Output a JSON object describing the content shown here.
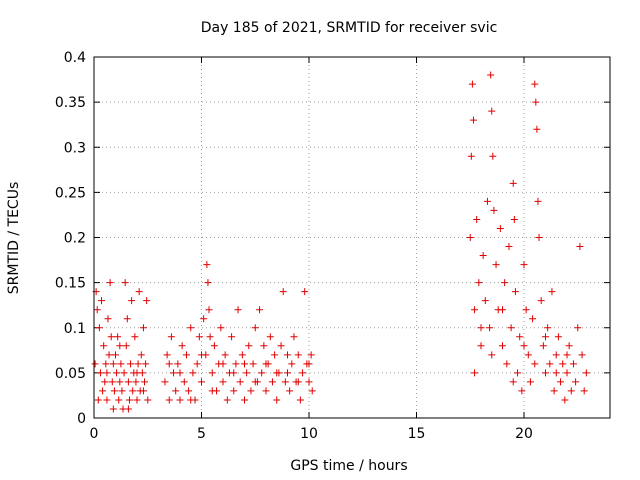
{
  "chart_data": {
    "type": "scatter",
    "title": "Day 185 of 2021, SRMTID for receiver svic",
    "xlabel": "GPS time / hours",
    "ylabel": "SRMTID / TECUs",
    "xlim": [
      0,
      24
    ],
    "ylim": [
      0,
      0.4
    ],
    "xticks": [
      0,
      5,
      10,
      15,
      20
    ],
    "yticks": [
      0,
      0.05,
      0.1,
      0.15,
      0.2,
      0.25,
      0.3,
      0.35,
      0.4
    ],
    "xtick_labels": [
      "0",
      "5",
      "10",
      "15",
      "20"
    ],
    "ytick_labels": [
      "0",
      "0.05",
      "0.1",
      "0.15",
      "0.2",
      "0.25",
      "0.3",
      "0.35",
      "0.4"
    ],
    "grid": true,
    "marker": "+",
    "color": "#e00000",
    "series": [
      {
        "points": [
          [
            0.05,
            0.06
          ],
          [
            0.1,
            0.14
          ],
          [
            0.15,
            0.12
          ],
          [
            0.2,
            0.02
          ],
          [
            0.25,
            0.1
          ],
          [
            0.3,
            0.05
          ],
          [
            0.35,
            0.13
          ],
          [
            0.4,
            0.03
          ],
          [
            0.45,
            0.08
          ],
          [
            0.5,
            0.04
          ],
          [
            0.55,
            0.06
          ],
          [
            0.6,
            0.02
          ],
          [
            0.65,
            0.11
          ],
          [
            0.7,
            0.07
          ],
          [
            0.75,
            0.15
          ],
          [
            0.8,
            0.09
          ],
          [
            0.85,
            0.04
          ],
          [
            0.9,
            0.06
          ],
          [
            0.95,
            0.03
          ],
          [
            1.0,
            0.07
          ],
          [
            1.05,
            0.05
          ],
          [
            1.1,
            0.09
          ],
          [
            1.15,
            0.02
          ],
          [
            1.2,
            0.04
          ],
          [
            1.25,
            0.06
          ],
          [
            1.3,
            0.03
          ],
          [
            1.35,
            0.01
          ],
          [
            1.4,
            0.05
          ],
          [
            1.45,
            0.15
          ],
          [
            1.5,
            0.08
          ],
          [
            1.55,
            0.11
          ],
          [
            1.6,
            0.04
          ],
          [
            1.65,
            0.02
          ],
          [
            1.7,
            0.06
          ],
          [
            1.75,
            0.13
          ],
          [
            1.8,
            0.03
          ],
          [
            1.85,
            0.05
          ],
          [
            1.9,
            0.09
          ],
          [
            1.95,
            0.04
          ],
          [
            2.0,
            0.02
          ],
          [
            2.05,
            0.06
          ],
          [
            2.1,
            0.14
          ],
          [
            2.15,
            0.03
          ],
          [
            2.2,
            0.07
          ],
          [
            2.25,
            0.05
          ],
          [
            2.3,
            0.1
          ],
          [
            2.35,
            0.04
          ],
          [
            2.4,
            0.06
          ],
          [
            2.45,
            0.13
          ],
          [
            2.5,
            0.02
          ],
          [
            0.6,
            0.05
          ],
          [
            0.9,
            0.01
          ],
          [
            1.2,
            0.08
          ],
          [
            1.6,
            0.01
          ],
          [
            2.0,
            0.05
          ],
          [
            2.3,
            0.03
          ],
          [
            3.3,
            0.04
          ],
          [
            3.4,
            0.07
          ],
          [
            3.5,
            0.02
          ],
          [
            3.6,
            0.09
          ],
          [
            3.7,
            0.05
          ],
          [
            3.8,
            0.03
          ],
          [
            3.9,
            0.06
          ],
          [
            4.0,
            0.02
          ],
          [
            4.1,
            0.08
          ],
          [
            4.2,
            0.04
          ],
          [
            4.3,
            0.07
          ],
          [
            4.4,
            0.03
          ],
          [
            4.5,
            0.1
          ],
          [
            4.6,
            0.05
          ],
          [
            4.7,
            0.02
          ],
          [
            4.8,
            0.06
          ],
          [
            4.9,
            0.09
          ],
          [
            5.0,
            0.04
          ],
          [
            5.1,
            0.11
          ],
          [
            5.2,
            0.07
          ],
          [
            5.25,
            0.17
          ],
          [
            5.3,
            0.15
          ],
          [
            5.35,
            0.12
          ],
          [
            5.4,
            0.09
          ],
          [
            5.5,
            0.05
          ],
          [
            5.6,
            0.08
          ],
          [
            5.7,
            0.03
          ],
          [
            5.8,
            0.06
          ],
          [
            5.9,
            0.1
          ],
          [
            6.0,
            0.04
          ],
          [
            6.1,
            0.07
          ],
          [
            6.2,
            0.02
          ],
          [
            6.3,
            0.05
          ],
          [
            6.4,
            0.09
          ],
          [
            6.5,
            0.03
          ],
          [
            6.6,
            0.06
          ],
          [
            6.7,
            0.12
          ],
          [
            6.8,
            0.04
          ],
          [
            6.9,
            0.07
          ],
          [
            7.0,
            0.02
          ],
          [
            7.1,
            0.05
          ],
          [
            7.2,
            0.08
          ],
          [
            7.3,
            0.03
          ],
          [
            7.4,
            0.06
          ],
          [
            7.5,
            0.1
          ],
          [
            7.6,
            0.04
          ],
          [
            7.7,
            0.12
          ],
          [
            7.8,
            0.05
          ],
          [
            7.9,
            0.08
          ],
          [
            8.0,
            0.03
          ],
          [
            8.1,
            0.06
          ],
          [
            8.2,
            0.09
          ],
          [
            8.3,
            0.04
          ],
          [
            8.4,
            0.07
          ],
          [
            8.5,
            0.02
          ],
          [
            8.6,
            0.05
          ],
          [
            8.7,
            0.08
          ],
          [
            8.8,
            0.14
          ],
          [
            8.9,
            0.04
          ],
          [
            9.0,
            0.07
          ],
          [
            9.1,
            0.03
          ],
          [
            9.2,
            0.06
          ],
          [
            9.3,
            0.09
          ],
          [
            9.4,
            0.04
          ],
          [
            9.5,
            0.07
          ],
          [
            9.6,
            0.02
          ],
          [
            9.7,
            0.05
          ],
          [
            9.8,
            0.14
          ],
          [
            9.9,
            0.06
          ],
          [
            10.0,
            0.04
          ],
          [
            10.1,
            0.07
          ],
          [
            10.15,
            0.03
          ],
          [
            3.5,
            0.06
          ],
          [
            4.0,
            0.05
          ],
          [
            4.5,
            0.02
          ],
          [
            5.0,
            0.07
          ],
          [
            5.5,
            0.03
          ],
          [
            6.0,
            0.06
          ],
          [
            6.5,
            0.05
          ],
          [
            7.0,
            0.06
          ],
          [
            7.5,
            0.04
          ],
          [
            8.0,
            0.06
          ],
          [
            8.5,
            0.05
          ],
          [
            9.0,
            0.05
          ],
          [
            9.5,
            0.04
          ],
          [
            10.0,
            0.06
          ],
          [
            17.5,
            0.2
          ],
          [
            17.55,
            0.29
          ],
          [
            17.6,
            0.37
          ],
          [
            17.65,
            0.33
          ],
          [
            17.7,
            0.12
          ],
          [
            17.8,
            0.22
          ],
          [
            17.9,
            0.15
          ],
          [
            18.0,
            0.08
          ],
          [
            18.1,
            0.18
          ],
          [
            18.2,
            0.13
          ],
          [
            18.3,
            0.24
          ],
          [
            18.4,
            0.1
          ],
          [
            18.45,
            0.38
          ],
          [
            18.5,
            0.34
          ],
          [
            18.55,
            0.29
          ],
          [
            18.6,
            0.23
          ],
          [
            18.7,
            0.17
          ],
          [
            18.8,
            0.12
          ],
          [
            18.9,
            0.21
          ],
          [
            19.0,
            0.08
          ],
          [
            19.1,
            0.15
          ],
          [
            19.2,
            0.06
          ],
          [
            19.3,
            0.19
          ],
          [
            19.4,
            0.1
          ],
          [
            19.5,
            0.26
          ],
          [
            19.55,
            0.22
          ],
          [
            19.6,
            0.14
          ],
          [
            19.7,
            0.05
          ],
          [
            19.8,
            0.09
          ],
          [
            19.9,
            0.03
          ],
          [
            20.0,
            0.17
          ],
          [
            20.1,
            0.12
          ],
          [
            20.2,
            0.07
          ],
          [
            20.3,
            0.04
          ],
          [
            20.4,
            0.11
          ],
          [
            20.5,
            0.37
          ],
          [
            20.55,
            0.35
          ],
          [
            20.6,
            0.32
          ],
          [
            20.65,
            0.24
          ],
          [
            20.7,
            0.2
          ],
          [
            20.8,
            0.13
          ],
          [
            20.9,
            0.08
          ],
          [
            21.0,
            0.05
          ],
          [
            21.1,
            0.1
          ],
          [
            21.2,
            0.06
          ],
          [
            21.3,
            0.14
          ],
          [
            21.4,
            0.03
          ],
          [
            21.5,
            0.07
          ],
          [
            21.6,
            0.09
          ],
          [
            21.7,
            0.04
          ],
          [
            21.8,
            0.06
          ],
          [
            21.9,
            0.02
          ],
          [
            22.0,
            0.05
          ],
          [
            22.1,
            0.08
          ],
          [
            22.2,
            0.03
          ],
          [
            22.3,
            0.06
          ],
          [
            22.4,
            0.04
          ],
          [
            22.5,
            0.1
          ],
          [
            22.6,
            0.19
          ],
          [
            22.7,
            0.07
          ],
          [
            22.8,
            0.03
          ],
          [
            22.9,
            0.05
          ],
          [
            17.7,
            0.05
          ],
          [
            18.0,
            0.1
          ],
          [
            18.5,
            0.07
          ],
          [
            19.0,
            0.12
          ],
          [
            19.5,
            0.04
          ],
          [
            20.0,
            0.08
          ],
          [
            20.5,
            0.06
          ],
          [
            21.0,
            0.09
          ],
          [
            21.5,
            0.05
          ],
          [
            22.0,
            0.07
          ]
        ]
      }
    ]
  }
}
